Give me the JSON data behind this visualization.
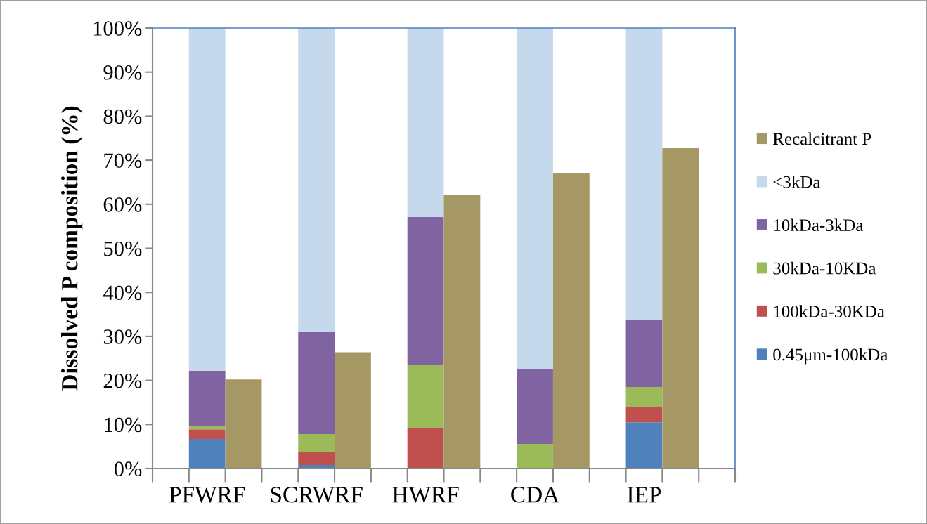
{
  "chart_data": {
    "type": "bar",
    "stacked": true,
    "ylabel": "Dissolved P composition (%)",
    "categories": [
      null,
      "PFWRF",
      null,
      null,
      "SCRWRF",
      null,
      null,
      "HWRF",
      null,
      null,
      "CDA",
      null,
      null,
      "IEP",
      null,
      null
    ],
    "series": [
      {
        "name": "0.45μm-100kDa",
        "color": "#4f81bd",
        "values": [
          null,
          6.7,
          null,
          null,
          0.8,
          null,
          null,
          0,
          null,
          null,
          0,
          null,
          null,
          10.5,
          null,
          null
        ]
      },
      {
        "name": "100kDa-30KDa",
        "color": "#c0504d",
        "values": [
          null,
          2.2,
          null,
          null,
          2.9,
          null,
          null,
          9.2,
          null,
          null,
          0,
          null,
          null,
          3.5,
          null,
          null
        ]
      },
      {
        "name": "30kDa-10KDa",
        "color": "#9bbb59",
        "values": [
          null,
          0.8,
          null,
          null,
          4.1,
          null,
          null,
          14.4,
          null,
          null,
          5.6,
          null,
          null,
          4.5,
          null,
          null
        ]
      },
      {
        "name": "10kDa-3kDa",
        "color": "#8064a2",
        "values": [
          null,
          12.5,
          null,
          null,
          23.3,
          null,
          null,
          33.5,
          null,
          null,
          17.0,
          null,
          null,
          15.3,
          null,
          null
        ]
      },
      {
        "name": "<3kDa",
        "color": "#c6d9ec",
        "values": [
          null,
          77.8,
          null,
          null,
          68.9,
          null,
          null,
          42.9,
          null,
          null,
          77.4,
          null,
          null,
          66.2,
          null,
          null
        ]
      },
      {
        "name": "Recalcitrant P",
        "color": "#a59864",
        "values": [
          null,
          null,
          20.2,
          null,
          null,
          26.4,
          null,
          null,
          62.1,
          null,
          null,
          67.0,
          null,
          null,
          72.8,
          null
        ]
      }
    ],
    "ylim": [
      0,
      100
    ],
    "yticks": [
      {
        "value": 0,
        "label": "0%"
      },
      {
        "value": 10,
        "label": "10%"
      },
      {
        "value": 20,
        "label": "20%"
      },
      {
        "value": 30,
        "label": "30%"
      },
      {
        "value": 40,
        "label": "40%"
      },
      {
        "value": 50,
        "label": "50%"
      },
      {
        "value": 60,
        "label": "60%"
      },
      {
        "value": 70,
        "label": "70%"
      },
      {
        "value": 80,
        "label": "80%"
      },
      {
        "value": 90,
        "label": "90%"
      },
      {
        "value": 100,
        "label": "100%"
      }
    ],
    "grid": false,
    "legend": "right"
  }
}
